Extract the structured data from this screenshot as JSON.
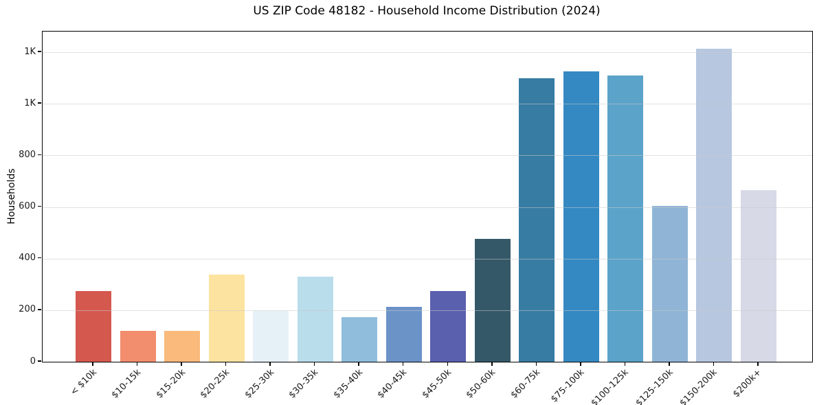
{
  "chart_data": {
    "type": "bar",
    "title": "US ZIP Code 48182 - Household Income Distribution (2024)",
    "ylabel": "Households",
    "xlabel": "",
    "categories": [
      "< $10k",
      "$10-15k",
      "$15-20k",
      "$20-25k",
      "$25-30k",
      "$30-35k",
      "$35-40k",
      "$40-45k",
      "$45-50k",
      "$50-60k",
      "$60-75k",
      "$75-100k",
      "$100-125k",
      "$125-150k",
      "$150-200k",
      "$200k+"
    ],
    "values": [
      273,
      119,
      119,
      339,
      198,
      331,
      172,
      212,
      275,
      476,
      1100,
      1127,
      1110,
      605,
      1214,
      664
    ],
    "bar_colors": [
      "#d5584f",
      "#f28d6d",
      "#f9ba7b",
      "#fde3a0",
      "#e5f1f6",
      "#b9ddeb",
      "#90bddc",
      "#6c93c8",
      "#5a5fae",
      "#345868",
      "#377ca3",
      "#3489c2",
      "#5ba3c9",
      "#8fb4d6",
      "#b7c7e0",
      "#d7d9e7"
    ],
    "ylim": [
      0,
      1280
    ],
    "yticks": [
      {
        "value": 0,
        "label": "0"
      },
      {
        "value": 200,
        "label": "200"
      },
      {
        "value": 400,
        "label": "400"
      },
      {
        "value": 600,
        "label": "600"
      },
      {
        "value": 800,
        "label": "800"
      },
      {
        "value": 1000,
        "label": "1K"
      },
      {
        "value": 1200,
        "label": "1K"
      }
    ],
    "grid": "horizontal",
    "legend": "none",
    "background_color": "#ffffff",
    "text_color": "#000000"
  }
}
